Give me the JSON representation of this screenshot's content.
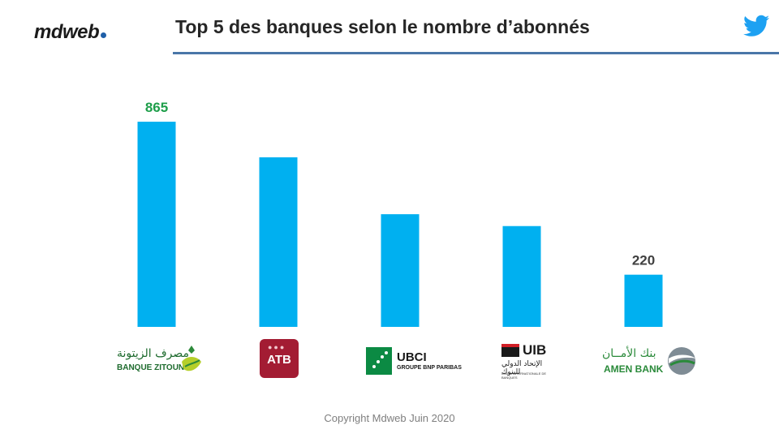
{
  "header": {
    "brand": "mdweb",
    "brand_dot_color": "#1f5fa8",
    "title": "Top 5 des banques selon le nombre d’abonnés",
    "social_icon": "twitter-bird-icon",
    "rule_color": "#4a76a8"
  },
  "chart_data": {
    "type": "bar",
    "title": "Top 5 des banques selon le nombre d’abonnés",
    "categories": [
      "Banque Zitouna",
      "ATB",
      "UBCI",
      "UIB",
      "Amen Bank"
    ],
    "values": [
      865,
      715,
      475,
      425,
      220
    ],
    "labeled": [
      865,
      null,
      null,
      null,
      220
    ],
    "xlabel": "",
    "ylabel": "",
    "ylim": [
      0,
      900
    ],
    "grid": false,
    "bar_color": "#00b0f0",
    "label_colors": [
      "#1e9e4a",
      null,
      null,
      null,
      "#404040"
    ]
  },
  "logos": {
    "zitouna": {
      "arabic": "مصرف الزيتونة",
      "latin": "BANQUE ZITOUNA"
    },
    "atb": {
      "name": "ATB"
    },
    "ubci": {
      "name": "UBCI",
      "sub": "GROUPE BNP PARIBAS"
    },
    "uib": {
      "name": "UIB",
      "arabic": "الإتحاد الدولي للبنوك",
      "sub": "UNION INTERNATIONALE DE BANQUES"
    },
    "amen": {
      "arabic": "بنك الأمــان",
      "latin": "AMEN BANK"
    }
  },
  "footer": {
    "copyright": "Copyright Mdweb  Juin 2020"
  }
}
